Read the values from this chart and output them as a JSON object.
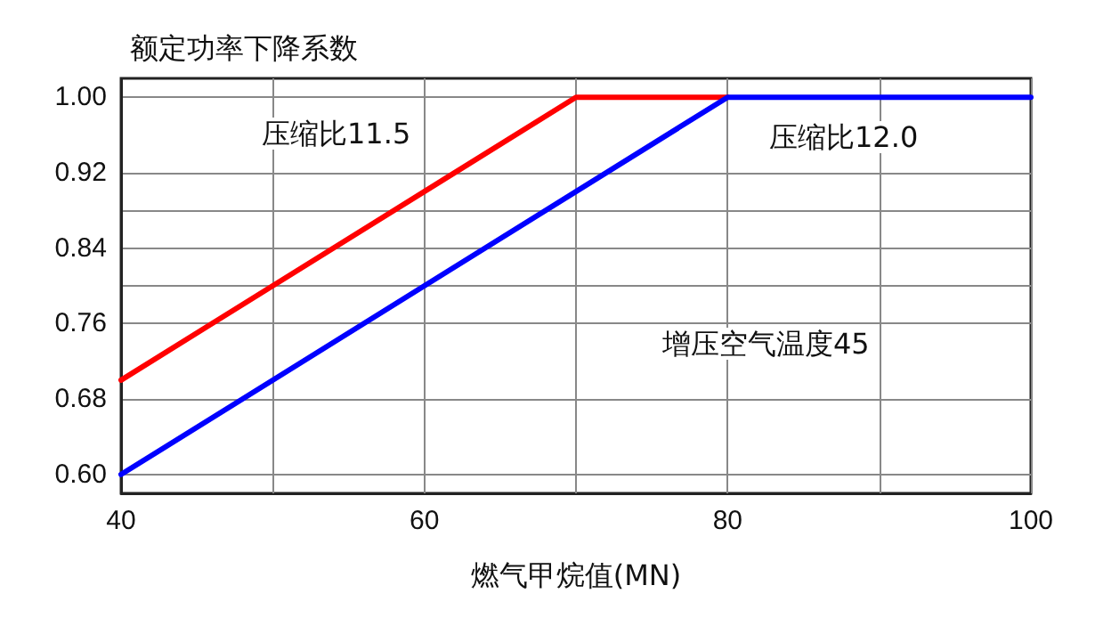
{
  "chart_data": {
    "type": "line",
    "ylabel": "额定功率下降系数",
    "xlabel": "燃气甲烷值(MN)",
    "series": [
      {
        "color": "#ff0000",
        "x": [
          40,
          70,
          80
        ],
        "values": [
          0.7,
          1.0,
          1.0
        ]
      },
      {
        "color": "#0000ff",
        "x": [
          40,
          80,
          100
        ],
        "values": [
          0.6,
          1.0,
          1.0
        ]
      }
    ],
    "xlim": [
      40,
      100
    ],
    "xticks": [
      40,
      {
        "value": 50,
        "label": null
      },
      60,
      {
        "value": 70,
        "label": null
      },
      80,
      {
        "value": 90,
        "label": null
      },
      100
    ],
    "ylim": [
      0.58,
      1.02
    ],
    "yticks": [
      {
        "value": 0.6,
        "label": "0.60"
      },
      {
        "value": 0.68,
        "label": "0.68"
      },
      {
        "value": 0.76,
        "label": "0.76"
      },
      {
        "value": 0.8,
        "label": null
      },
      {
        "value": 0.84,
        "label": "0.84"
      },
      {
        "value": 0.88,
        "label": null
      },
      {
        "value": 0.92,
        "label": "0.92"
      },
      {
        "value": 1.0,
        "label": "1.00"
      }
    ],
    "annotations": [
      "压缩比11.5",
      "压缩比12.0",
      "增压空气温度45"
    ],
    "grid": true,
    "marker": "none",
    "line_style": "solid"
  }
}
